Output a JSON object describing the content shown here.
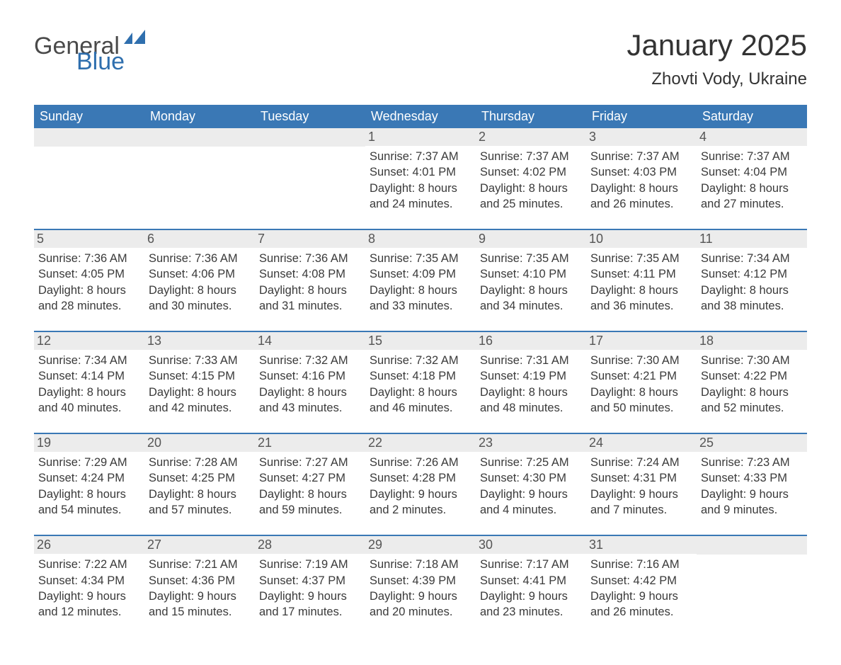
{
  "logo": {
    "word1": "General",
    "word2": "Blue",
    "color1": "#4a4a4a",
    "color2": "#2f6fae"
  },
  "header": {
    "title": "January 2025",
    "location": "Zhovti Vody, Ukraine"
  },
  "colors": {
    "header_bg": "#3a78b5",
    "header_text": "#ffffff",
    "daynum_bg": "#ececec",
    "row_border": "#3a78b5",
    "body_text": "#3a3a3a",
    "page_bg": "#ffffff"
  },
  "weekdays": [
    "Sunday",
    "Monday",
    "Tuesday",
    "Wednesday",
    "Thursday",
    "Friday",
    "Saturday"
  ],
  "weeks": [
    [
      null,
      null,
      null,
      {
        "n": "1",
        "sunrise": "7:37 AM",
        "sunset": "4:01 PM",
        "daylight": "8 hours and 24 minutes."
      },
      {
        "n": "2",
        "sunrise": "7:37 AM",
        "sunset": "4:02 PM",
        "daylight": "8 hours and 25 minutes."
      },
      {
        "n": "3",
        "sunrise": "7:37 AM",
        "sunset": "4:03 PM",
        "daylight": "8 hours and 26 minutes."
      },
      {
        "n": "4",
        "sunrise": "7:37 AM",
        "sunset": "4:04 PM",
        "daylight": "8 hours and 27 minutes."
      }
    ],
    [
      {
        "n": "5",
        "sunrise": "7:36 AM",
        "sunset": "4:05 PM",
        "daylight": "8 hours and 28 minutes."
      },
      {
        "n": "6",
        "sunrise": "7:36 AM",
        "sunset": "4:06 PM",
        "daylight": "8 hours and 30 minutes."
      },
      {
        "n": "7",
        "sunrise": "7:36 AM",
        "sunset": "4:08 PM",
        "daylight": "8 hours and 31 minutes."
      },
      {
        "n": "8",
        "sunrise": "7:35 AM",
        "sunset": "4:09 PM",
        "daylight": "8 hours and 33 minutes."
      },
      {
        "n": "9",
        "sunrise": "7:35 AM",
        "sunset": "4:10 PM",
        "daylight": "8 hours and 34 minutes."
      },
      {
        "n": "10",
        "sunrise": "7:35 AM",
        "sunset": "4:11 PM",
        "daylight": "8 hours and 36 minutes."
      },
      {
        "n": "11",
        "sunrise": "7:34 AM",
        "sunset": "4:12 PM",
        "daylight": "8 hours and 38 minutes."
      }
    ],
    [
      {
        "n": "12",
        "sunrise": "7:34 AM",
        "sunset": "4:14 PM",
        "daylight": "8 hours and 40 minutes."
      },
      {
        "n": "13",
        "sunrise": "7:33 AM",
        "sunset": "4:15 PM",
        "daylight": "8 hours and 42 minutes."
      },
      {
        "n": "14",
        "sunrise": "7:32 AM",
        "sunset": "4:16 PM",
        "daylight": "8 hours and 43 minutes."
      },
      {
        "n": "15",
        "sunrise": "7:32 AM",
        "sunset": "4:18 PM",
        "daylight": "8 hours and 46 minutes."
      },
      {
        "n": "16",
        "sunrise": "7:31 AM",
        "sunset": "4:19 PM",
        "daylight": "8 hours and 48 minutes."
      },
      {
        "n": "17",
        "sunrise": "7:30 AM",
        "sunset": "4:21 PM",
        "daylight": "8 hours and 50 minutes."
      },
      {
        "n": "18",
        "sunrise": "7:30 AM",
        "sunset": "4:22 PM",
        "daylight": "8 hours and 52 minutes."
      }
    ],
    [
      {
        "n": "19",
        "sunrise": "7:29 AM",
        "sunset": "4:24 PM",
        "daylight": "8 hours and 54 minutes."
      },
      {
        "n": "20",
        "sunrise": "7:28 AM",
        "sunset": "4:25 PM",
        "daylight": "8 hours and 57 minutes."
      },
      {
        "n": "21",
        "sunrise": "7:27 AM",
        "sunset": "4:27 PM",
        "daylight": "8 hours and 59 minutes."
      },
      {
        "n": "22",
        "sunrise": "7:26 AM",
        "sunset": "4:28 PM",
        "daylight": "9 hours and 2 minutes."
      },
      {
        "n": "23",
        "sunrise": "7:25 AM",
        "sunset": "4:30 PM",
        "daylight": "9 hours and 4 minutes."
      },
      {
        "n": "24",
        "sunrise": "7:24 AM",
        "sunset": "4:31 PM",
        "daylight": "9 hours and 7 minutes."
      },
      {
        "n": "25",
        "sunrise": "7:23 AM",
        "sunset": "4:33 PM",
        "daylight": "9 hours and 9 minutes."
      }
    ],
    [
      {
        "n": "26",
        "sunrise": "7:22 AM",
        "sunset": "4:34 PM",
        "daylight": "9 hours and 12 minutes."
      },
      {
        "n": "27",
        "sunrise": "7:21 AM",
        "sunset": "4:36 PM",
        "daylight": "9 hours and 15 minutes."
      },
      {
        "n": "28",
        "sunrise": "7:19 AM",
        "sunset": "4:37 PM",
        "daylight": "9 hours and 17 minutes."
      },
      {
        "n": "29",
        "sunrise": "7:18 AM",
        "sunset": "4:39 PM",
        "daylight": "9 hours and 20 minutes."
      },
      {
        "n": "30",
        "sunrise": "7:17 AM",
        "sunset": "4:41 PM",
        "daylight": "9 hours and 23 minutes."
      },
      {
        "n": "31",
        "sunrise": "7:16 AM",
        "sunset": "4:42 PM",
        "daylight": "9 hours and 26 minutes."
      },
      null
    ]
  ],
  "labels": {
    "sunrise": "Sunrise: ",
    "sunset": "Sunset: ",
    "daylight": "Daylight: "
  }
}
